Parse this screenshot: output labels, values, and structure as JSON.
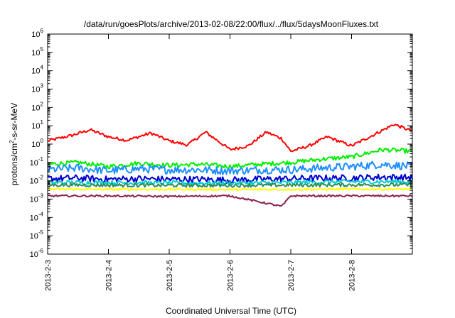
{
  "chart_data": {
    "type": "line",
    "title": "/data/run/goesPlots/archive/2013-02-08/22:00/flux/../flux/5daysMoonFluxes.txt",
    "xlabel": "Coordinated Universal Time (UTC)",
    "ylabel_parts": [
      "protons/cm",
      "2",
      "-s-sr-MeV"
    ],
    "x_ticks": [
      "2013-2-3",
      "2013-2-4",
      "2013-2-5",
      "2013-2-6",
      "2013-2-7",
      "2013-2-8"
    ],
    "xlim": [
      "2013-2-3",
      "2013-2-9"
    ],
    "ylim": [
      1e-06,
      1000000.0
    ],
    "log_y": true,
    "y_tick_exponents": [
      -6,
      -5,
      -4,
      -3,
      -2,
      -1,
      0,
      1,
      2,
      3,
      4,
      5,
      6
    ],
    "y_tick_base": "10",
    "grid": false,
    "legend": "none",
    "series": [
      {
        "color": "#ff0000",
        "x": [
          "2013-2-3",
          "2013-2-3.4",
          "2013-2-3.7",
          "2013-2-4",
          "2013-2-4.3",
          "2013-2-4.7",
          "2013-2-5",
          "2013-2-5.3",
          "2013-2-5.6",
          "2013-2-6",
          "2013-2-6.3",
          "2013-2-6.6",
          "2013-2-6.85",
          "2013-2-7",
          "2013-2-7.3",
          "2013-2-7.6",
          "2013-2-8",
          "2013-2-8.3",
          "2013-2-8.7",
          "2013-2-9"
        ],
        "values": [
          1.5,
          3.0,
          6.0,
          2.5,
          1.6,
          4.0,
          1.5,
          0.9,
          4.5,
          0.5,
          0.8,
          4.5,
          2.0,
          0.4,
          0.8,
          2.5,
          0.8,
          2.5,
          12.0,
          5.0
        ]
      },
      {
        "color": "#00ee00",
        "x": [
          "2013-2-3",
          "2013-2-3.5",
          "2013-2-4",
          "2013-2-4.5",
          "2013-2-5",
          "2013-2-5.5",
          "2013-2-6",
          "2013-2-6.5",
          "2013-2-7",
          "2013-2-7.5",
          "2013-2-8",
          "2013-2-8.5",
          "2013-2-9"
        ],
        "values": [
          0.08,
          0.1,
          0.06,
          0.09,
          0.07,
          0.08,
          0.06,
          0.08,
          0.1,
          0.15,
          0.2,
          0.5,
          0.4
        ]
      },
      {
        "color": "#1e90ff",
        "x": [
          "2013-2-3",
          "2013-2-3.5",
          "2013-2-4",
          "2013-2-4.5",
          "2013-2-5",
          "2013-2-5.5",
          "2013-2-6",
          "2013-2-6.5",
          "2013-2-7",
          "2013-2-7.5",
          "2013-2-8",
          "2013-2-8.5",
          "2013-2-9"
        ],
        "values": [
          0.04,
          0.05,
          0.035,
          0.045,
          0.04,
          0.04,
          0.035,
          0.04,
          0.04,
          0.05,
          0.06,
          0.08,
          0.06
        ]
      },
      {
        "color": "#0000cd",
        "x": [
          "2013-2-3",
          "2013-2-3.5",
          "2013-2-4",
          "2013-2-4.5",
          "2013-2-5",
          "2013-2-5.5",
          "2013-2-6",
          "2013-2-6.5",
          "2013-2-7",
          "2013-2-7.5",
          "2013-2-8",
          "2013-2-8.5",
          "2013-2-9"
        ],
        "values": [
          0.013,
          0.014,
          0.012,
          0.013,
          0.012,
          0.012,
          0.011,
          0.012,
          0.013,
          0.014,
          0.014,
          0.016,
          0.015
        ]
      },
      {
        "color": "#00ced1",
        "x": [
          "2013-2-3",
          "2013-2-4",
          "2013-2-5",
          "2013-2-6",
          "2013-2-7",
          "2013-2-8",
          "2013-2-9"
        ],
        "values": [
          0.008,
          0.008,
          0.0075,
          0.0075,
          0.008,
          0.009,
          0.009
        ]
      },
      {
        "color": "#2e8b57",
        "x": [
          "2013-2-3",
          "2013-2-4",
          "2013-2-5",
          "2013-2-6",
          "2013-2-7",
          "2013-2-8",
          "2013-2-9"
        ],
        "values": [
          0.006,
          0.0058,
          0.0056,
          0.0056,
          0.0058,
          0.006,
          0.006
        ]
      },
      {
        "color": "#ffff00",
        "x": [
          "2013-2-3",
          "2013-2-4",
          "2013-2-5",
          "2013-2-6",
          "2013-2-7",
          "2013-2-8",
          "2013-2-9"
        ],
        "values": [
          0.0035,
          0.0034,
          0.0034,
          0.0033,
          0.0034,
          0.0035,
          0.0035
        ]
      },
      {
        "color": "#8b2252",
        "x": [
          "2013-2-3",
          "2013-2-4",
          "2013-2-5",
          "2013-2-6",
          "2013-2-6.85",
          "2013-2-7",
          "2013-2-8",
          "2013-2-9"
        ],
        "values": [
          0.0015,
          0.0015,
          0.0014,
          0.0015,
          0.0004,
          0.0015,
          0.0015,
          0.0015
        ]
      }
    ]
  }
}
